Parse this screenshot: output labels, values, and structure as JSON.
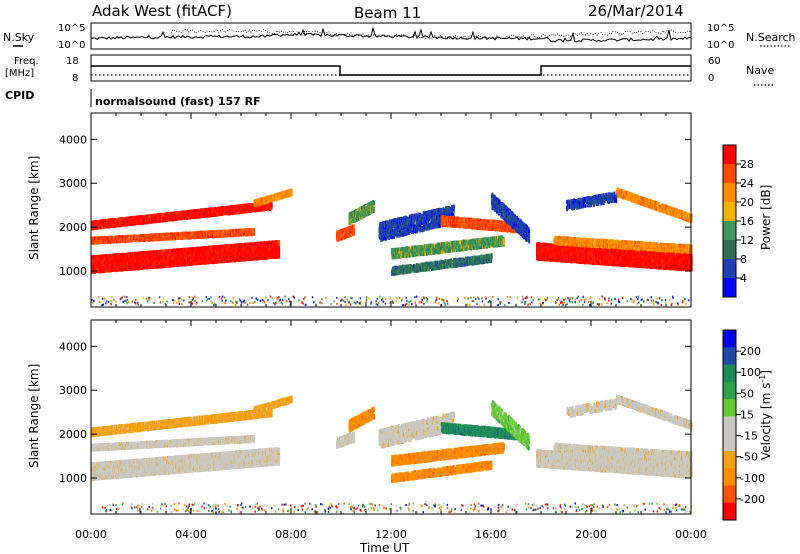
{
  "header": {
    "station": "Adak West (fitACF)",
    "beam": "Beam 11",
    "date": "26/Mar/2014"
  },
  "noise_panel": {
    "left_label": "N.Sky",
    "right_label": "N.Search",
    "left_ticks": [
      "10^5",
      "10^0"
    ],
    "right_ticks": [
      "10^5",
      "10^0"
    ]
  },
  "freq_panel": {
    "left_label_1": "Freq.",
    "left_label_2": "[MHz]",
    "right_label": "Nave",
    "left_ticks": [
      "18",
      "8"
    ],
    "right_ticks": [
      "60",
      "0"
    ],
    "cpid_label": "CPID",
    "cpid_text": "normalsound (fast) 157 RF"
  },
  "colors": {
    "power": [
      "#0000ff",
      "#1f3fb4",
      "#2f6e52",
      "#3d9a5a",
      "#f2b200",
      "#ff8a00",
      "#ff4a00",
      "#ff0000"
    ],
    "velocity": [
      "#ff0000",
      "#ff5000",
      "#ff8c00",
      "#f4a010",
      "#c8c8c0",
      "#c8c8c0",
      "#66cc33",
      "#2fa04a",
      "#1f8a5a",
      "#1f4aa8",
      "#0000e6"
    ]
  },
  "chart_data": [
    {
      "type": "heatmap",
      "title": "",
      "xlabel": "Time UT",
      "ylabel": "Slant Range [km]",
      "x_ticks": [
        "00:00",
        "04:00",
        "08:00",
        "12:00",
        "16:00",
        "20:00",
        "00:00"
      ],
      "xlim_hours": [
        0,
        24
      ],
      "y_ticks": [
        "4000",
        "3000",
        "2000",
        "1000"
      ],
      "ylim": [
        180,
        4600
      ],
      "colorbar": {
        "label": "Power [dB]",
        "ticks": [
          "28",
          "24",
          "20",
          "16",
          "12",
          "8",
          "4"
        ],
        "range": [
          0,
          32
        ]
      }
    },
    {
      "type": "heatmap",
      "title": "",
      "xlabel": "Time UT",
      "ylabel": "Slant Range [km]",
      "x_ticks": [
        "00:00",
        "04:00",
        "08:00",
        "12:00",
        "16:00",
        "20:00",
        "00:00"
      ],
      "xlim_hours": [
        0,
        24
      ],
      "y_ticks": [
        "4000",
        "3000",
        "2000",
        "1000"
      ],
      "ylim": [
        180,
        4600
      ],
      "colorbar": {
        "label": "Velocity [m s^-1]",
        "ticks": [
          "200",
          "100",
          "50",
          "15",
          "-15",
          "-50",
          "-100",
          "-200"
        ],
        "range": [
          -250,
          250
        ]
      }
    }
  ]
}
